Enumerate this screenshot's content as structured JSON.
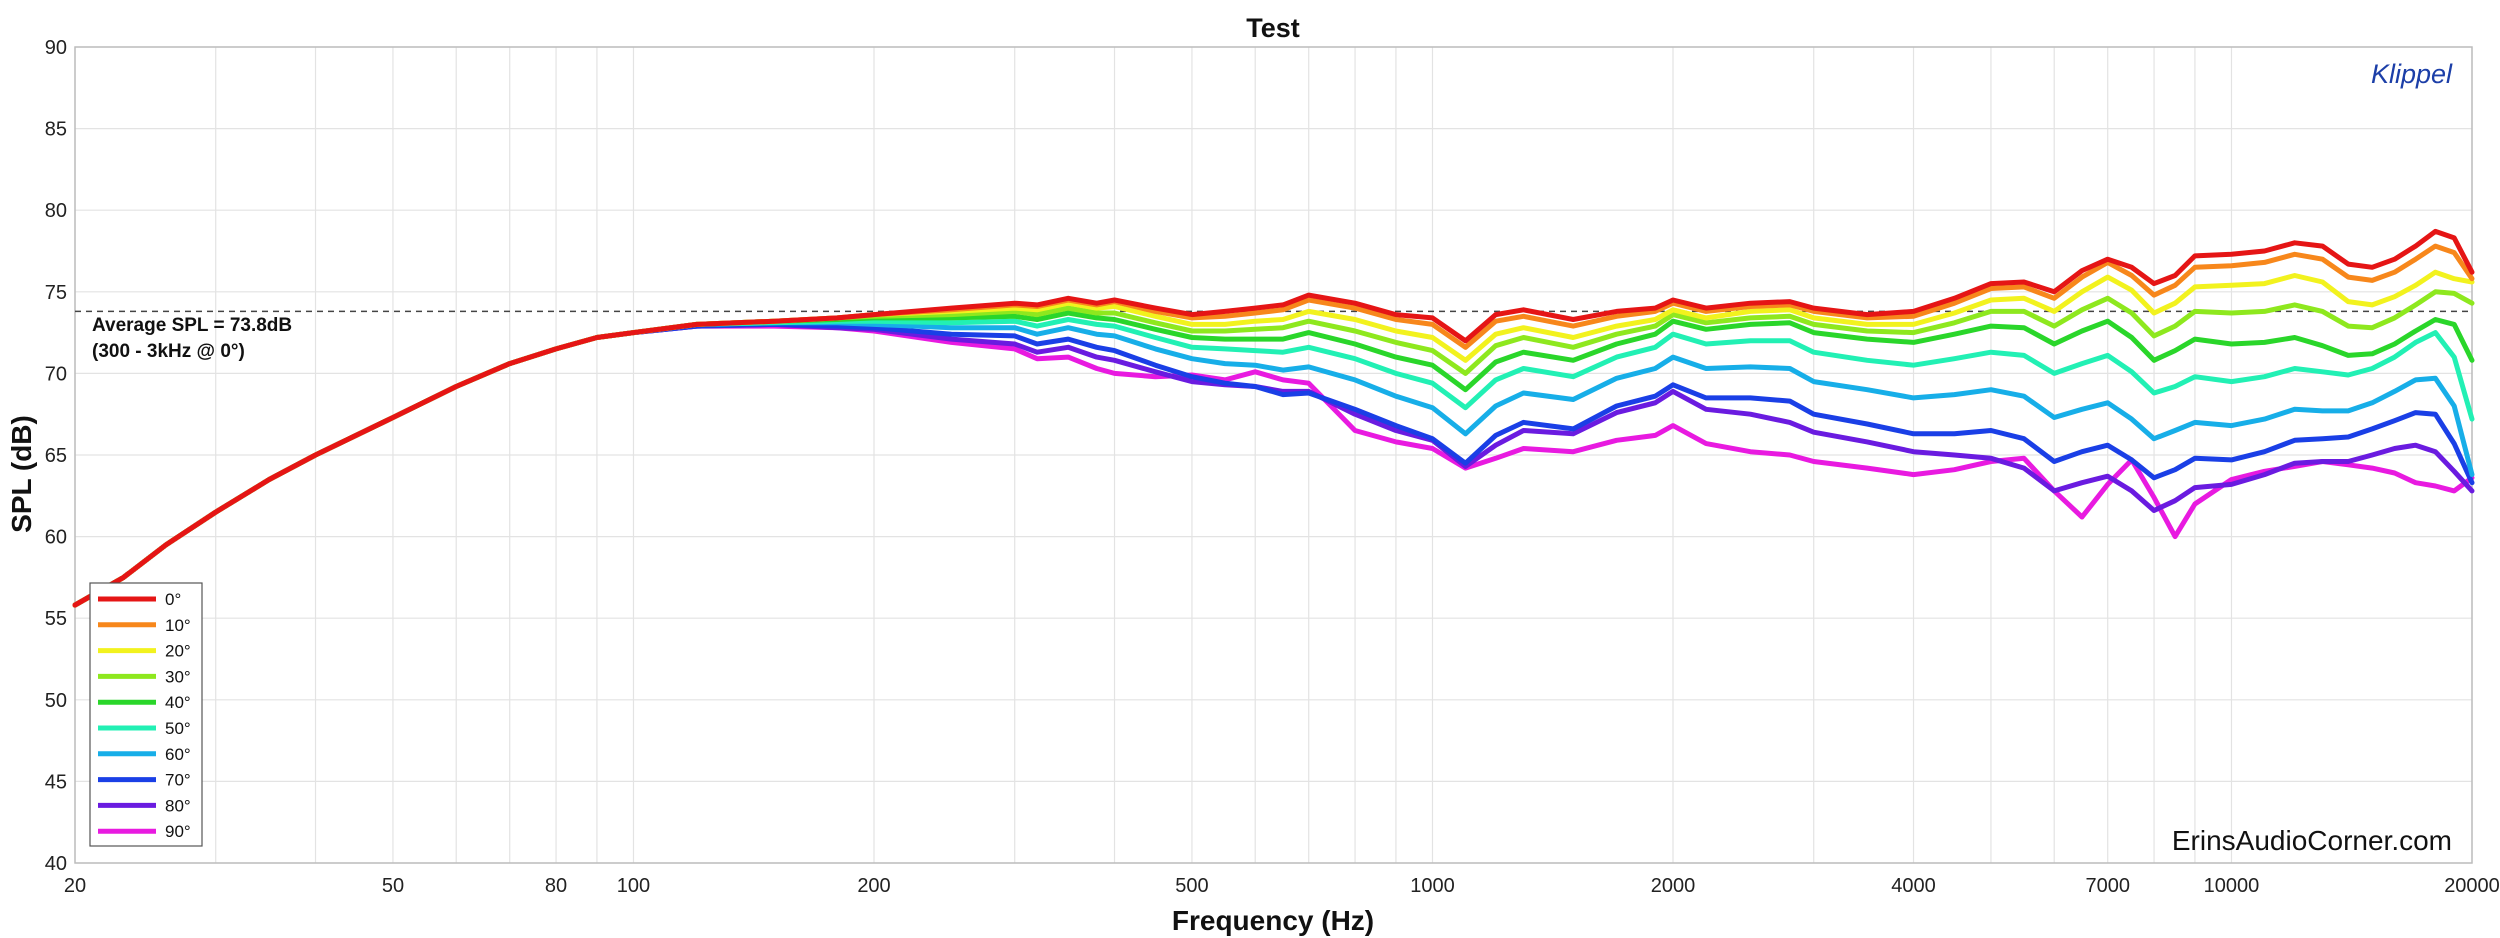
{
  "chart_data": {
    "type": "line",
    "title": "Test",
    "xlabel": "Frequency (Hz)",
    "ylabel": "SPL (dB)",
    "x_scale": "log",
    "xlim": [
      20,
      20000
    ],
    "ylim": [
      40,
      90
    ],
    "xticks": [
      20,
      50,
      80,
      100,
      200,
      500,
      1000,
      2000,
      4000,
      7000,
      10000,
      20000
    ],
    "xtick_labels": [
      "20",
      "50",
      "80",
      "100",
      "200",
      "500",
      "1000",
      "2000",
      "4000",
      "7000",
      "10000",
      "20000"
    ],
    "yticks": [
      40,
      45,
      50,
      55,
      60,
      65,
      70,
      75,
      80,
      85,
      90
    ],
    "grid": true,
    "legend_position": "bottom-left",
    "reference_line": {
      "y": 73.8,
      "style": "dashed"
    },
    "annotation": [
      "Average SPL = 73.8dB",
      "(300 - 3kHz @ 0°)"
    ],
    "brand": "Klippel",
    "brand_color": "#1c3fa8",
    "watermark": "ErinsAudioCorner.com",
    "x": [
      20,
      23,
      26,
      30,
      35,
      40,
      50,
      60,
      70,
      80,
      90,
      100,
      120,
      150,
      180,
      200,
      250,
      300,
      320,
      350,
      380,
      400,
      450,
      500,
      550,
      600,
      650,
      700,
      800,
      900,
      1000,
      1100,
      1200,
      1300,
      1500,
      1700,
      1900,
      2000,
      2200,
      2500,
      2800,
      3000,
      3500,
      4000,
      4500,
      5000,
      5500,
      6000,
      6500,
      7000,
      7500,
      8000,
      8500,
      9000,
      10000,
      11000,
      12000,
      13000,
      14000,
      15000,
      16000,
      17000,
      18000,
      19000,
      20000
    ],
    "series": [
      {
        "name": "0°",
        "color": "#e51515",
        "values": [
          55.8,
          57.5,
          59.5,
          61.5,
          63.5,
          65.0,
          67.3,
          69.2,
          70.6,
          71.5,
          72.2,
          72.5,
          73.0,
          73.2,
          73.4,
          73.6,
          74.0,
          74.3,
          74.2,
          74.6,
          74.3,
          74.5,
          74.0,
          73.6,
          73.8,
          74.0,
          74.2,
          74.8,
          74.3,
          73.6,
          73.4,
          72.0,
          73.6,
          73.9,
          73.3,
          73.8,
          74.0,
          74.5,
          74.0,
          74.3,
          74.4,
          74.0,
          73.6,
          73.8,
          74.6,
          75.5,
          75.6,
          75.0,
          76.3,
          77.0,
          76.5,
          75.5,
          76.0,
          77.2,
          77.3,
          77.5,
          78.0,
          77.8,
          76.7,
          76.5,
          77.0,
          77.8,
          78.7,
          78.3,
          76.2
        ]
      },
      {
        "name": "10°",
        "color": "#f7871b",
        "values": [
          55.8,
          57.5,
          59.5,
          61.5,
          63.5,
          65.0,
          67.3,
          69.2,
          70.6,
          71.5,
          72.2,
          72.5,
          73.0,
          73.2,
          73.4,
          73.6,
          73.9,
          74.2,
          74.1,
          74.5,
          74.2,
          74.4,
          73.8,
          73.4,
          73.5,
          73.7,
          73.9,
          74.5,
          74.0,
          73.3,
          73.0,
          71.6,
          73.2,
          73.5,
          72.9,
          73.5,
          73.8,
          74.3,
          73.8,
          74.1,
          74.2,
          73.8,
          73.4,
          73.5,
          74.3,
          75.2,
          75.3,
          74.6,
          75.9,
          76.8,
          76.0,
          74.8,
          75.4,
          76.5,
          76.6,
          76.8,
          77.3,
          77.0,
          75.9,
          75.7,
          76.2,
          77.0,
          77.8,
          77.4,
          75.8
        ]
      },
      {
        "name": "20°",
        "color": "#f2f21e",
        "values": [
          55.8,
          57.5,
          59.5,
          61.5,
          63.5,
          65.0,
          67.3,
          69.2,
          70.6,
          71.5,
          72.2,
          72.5,
          73.0,
          73.2,
          73.4,
          73.6,
          73.8,
          74.0,
          73.9,
          74.3,
          74.0,
          74.1,
          73.5,
          73.0,
          73.0,
          73.2,
          73.3,
          73.8,
          73.3,
          72.6,
          72.2,
          70.8,
          72.4,
          72.8,
          72.2,
          72.9,
          73.3,
          73.9,
          73.4,
          73.8,
          73.9,
          73.4,
          73.0,
          73.0,
          73.7,
          74.5,
          74.6,
          73.8,
          75.0,
          75.9,
          75.1,
          73.7,
          74.3,
          75.3,
          75.4,
          75.5,
          76.0,
          75.6,
          74.4,
          74.2,
          74.7,
          75.4,
          76.2,
          75.8,
          75.6
        ]
      },
      {
        "name": "30°",
        "color": "#8ee81e",
        "values": [
          55.8,
          57.5,
          59.5,
          61.5,
          63.5,
          65.0,
          67.3,
          69.2,
          70.6,
          71.5,
          72.2,
          72.5,
          73.0,
          73.2,
          73.4,
          73.5,
          73.6,
          73.8,
          73.6,
          74.0,
          73.7,
          73.7,
          73.1,
          72.6,
          72.6,
          72.7,
          72.8,
          73.2,
          72.6,
          71.9,
          71.4,
          70.0,
          71.7,
          72.2,
          71.6,
          72.4,
          72.9,
          73.6,
          73.1,
          73.4,
          73.5,
          73.0,
          72.6,
          72.5,
          73.1,
          73.8,
          73.8,
          72.9,
          73.9,
          74.6,
          73.7,
          72.3,
          72.9,
          73.8,
          73.7,
          73.8,
          74.2,
          73.8,
          72.9,
          72.8,
          73.4,
          74.2,
          75.0,
          74.9,
          74.3
        ]
      },
      {
        "name": "40°",
        "color": "#2ad62a",
        "values": [
          55.8,
          57.5,
          59.5,
          61.5,
          63.5,
          65.0,
          67.3,
          69.2,
          70.6,
          71.5,
          72.2,
          72.5,
          73.0,
          73.2,
          73.3,
          73.4,
          73.4,
          73.5,
          73.3,
          73.7,
          73.4,
          73.3,
          72.7,
          72.2,
          72.1,
          72.1,
          72.1,
          72.5,
          71.8,
          71.0,
          70.5,
          69.0,
          70.7,
          71.3,
          70.8,
          71.8,
          72.4,
          73.2,
          72.7,
          73.0,
          73.1,
          72.5,
          72.1,
          71.9,
          72.4,
          72.9,
          72.8,
          71.8,
          72.6,
          73.2,
          72.2,
          70.8,
          71.4,
          72.1,
          71.8,
          71.9,
          72.2,
          71.7,
          71.1,
          71.2,
          71.8,
          72.6,
          73.3,
          73.0,
          70.8
        ]
      },
      {
        "name": "50°",
        "color": "#22f0b4",
        "values": [
          55.8,
          57.5,
          59.5,
          61.5,
          63.5,
          65.0,
          67.3,
          69.2,
          70.6,
          71.5,
          72.2,
          72.5,
          73.0,
          73.1,
          73.2,
          73.2,
          73.1,
          73.2,
          72.9,
          73.3,
          73.0,
          72.9,
          72.2,
          71.6,
          71.5,
          71.4,
          71.3,
          71.6,
          70.9,
          70.0,
          69.4,
          67.9,
          69.6,
          70.3,
          69.8,
          71.0,
          71.6,
          72.4,
          71.8,
          72.0,
          72.0,
          71.3,
          70.8,
          70.5,
          70.9,
          71.3,
          71.1,
          70.0,
          70.6,
          71.1,
          70.1,
          68.8,
          69.2,
          69.8,
          69.5,
          69.8,
          70.3,
          70.1,
          69.9,
          70.3,
          71.0,
          71.9,
          72.5,
          71.0,
          67.2
        ]
      },
      {
        "name": "60°",
        "color": "#17aee8",
        "values": [
          55.8,
          57.5,
          59.5,
          61.5,
          63.5,
          65.0,
          67.3,
          69.2,
          70.6,
          71.5,
          72.2,
          72.5,
          73.0,
          73.1,
          73.1,
          73.0,
          72.8,
          72.8,
          72.4,
          72.8,
          72.4,
          72.3,
          71.5,
          70.9,
          70.6,
          70.5,
          70.2,
          70.4,
          69.6,
          68.6,
          67.9,
          66.3,
          68.0,
          68.8,
          68.4,
          69.7,
          70.3,
          71.0,
          70.3,
          70.4,
          70.3,
          69.5,
          69.0,
          68.5,
          68.7,
          69.0,
          68.6,
          67.3,
          67.8,
          68.2,
          67.2,
          66.0,
          66.5,
          67.0,
          66.8,
          67.2,
          67.8,
          67.7,
          67.7,
          68.2,
          68.9,
          69.6,
          69.7,
          68.0,
          63.8
        ]
      },
      {
        "name": "70°",
        "color": "#1a3fe6",
        "values": [
          55.8,
          57.5,
          59.5,
          61.5,
          63.5,
          65.0,
          67.3,
          69.2,
          70.6,
          71.5,
          72.2,
          72.5,
          72.9,
          73.0,
          72.9,
          72.8,
          72.4,
          72.3,
          71.8,
          72.1,
          71.6,
          71.4,
          70.5,
          69.8,
          69.4,
          69.2,
          68.7,
          68.8,
          67.8,
          66.8,
          66.0,
          64.5,
          66.2,
          67.0,
          66.6,
          68.0,
          68.6,
          69.3,
          68.5,
          68.5,
          68.3,
          67.5,
          66.9,
          66.3,
          66.3,
          66.5,
          66.0,
          64.6,
          65.2,
          65.6,
          64.7,
          63.6,
          64.1,
          64.8,
          64.7,
          65.2,
          65.9,
          66.0,
          66.1,
          66.6,
          67.1,
          67.6,
          67.5,
          65.7,
          63.3
        ]
      },
      {
        "name": "80°",
        "color": "#6a1be0",
        "values": [
          55.8,
          57.5,
          59.5,
          61.5,
          63.5,
          65.0,
          67.3,
          69.2,
          70.6,
          71.5,
          72.2,
          72.5,
          72.9,
          73.0,
          72.8,
          72.7,
          72.1,
          71.8,
          71.3,
          71.6,
          71.0,
          70.8,
          70.1,
          69.5,
          69.3,
          69.2,
          68.9,
          68.9,
          67.5,
          66.5,
          65.9,
          64.3,
          65.6,
          66.5,
          66.3,
          67.6,
          68.2,
          68.9,
          67.8,
          67.5,
          67.0,
          66.4,
          65.8,
          65.2,
          65.0,
          64.8,
          64.2,
          62.8,
          63.3,
          63.7,
          62.8,
          61.6,
          62.2,
          63.0,
          63.2,
          63.8,
          64.5,
          64.6,
          64.6,
          65.0,
          65.4,
          65.6,
          65.2,
          64.0,
          62.8
        ]
      },
      {
        "name": "90°",
        "color": "#e81ae0",
        "values": [
          55.8,
          57.5,
          59.5,
          61.5,
          63.5,
          65.0,
          67.3,
          69.2,
          70.6,
          71.5,
          72.2,
          72.5,
          72.9,
          72.9,
          72.8,
          72.6,
          71.9,
          71.5,
          70.9,
          71.0,
          70.3,
          70.0,
          69.8,
          69.9,
          69.6,
          70.1,
          69.6,
          69.4,
          66.5,
          65.8,
          65.4,
          64.2,
          64.8,
          65.4,
          65.2,
          65.9,
          66.2,
          66.8,
          65.7,
          65.2,
          65.0,
          64.6,
          64.2,
          63.8,
          64.1,
          64.6,
          64.8,
          62.8,
          61.2,
          63.2,
          64.7,
          62.4,
          60.0,
          62.0,
          63.5,
          64.0,
          64.3,
          64.6,
          64.4,
          64.2,
          63.9,
          63.3,
          63.1,
          62.8,
          63.6
        ]
      }
    ]
  }
}
